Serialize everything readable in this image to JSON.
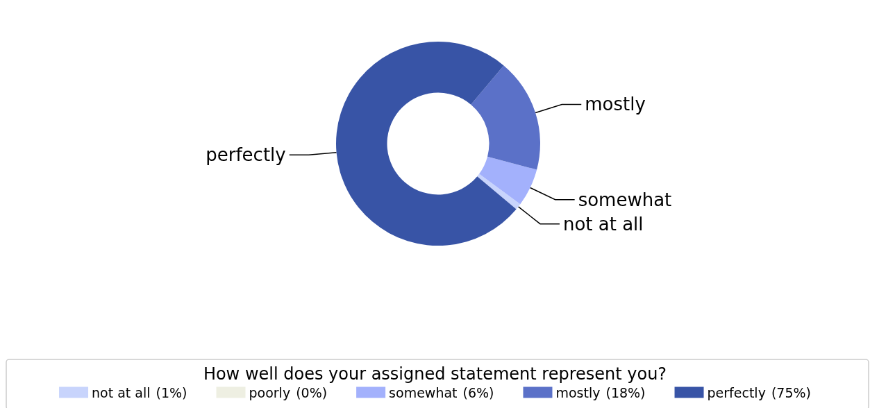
{
  "chart_data": {
    "type": "donut",
    "legend_title": "How well does your assigned statement represent you?",
    "categories": [
      "not at all",
      "poorly",
      "somewhat",
      "mostly",
      "perfectly"
    ],
    "values": [
      1,
      0,
      6,
      18,
      75
    ],
    "value_labels": [
      "(1%)",
      "(0%)",
      "(6%)",
      "(18%)",
      "(75%)"
    ],
    "colors": [
      "#c8d4fc",
      "#eeefe2",
      "#a3b1fc",
      "#5b71c8",
      "#3854a6"
    ],
    "legend": "bottom"
  }
}
